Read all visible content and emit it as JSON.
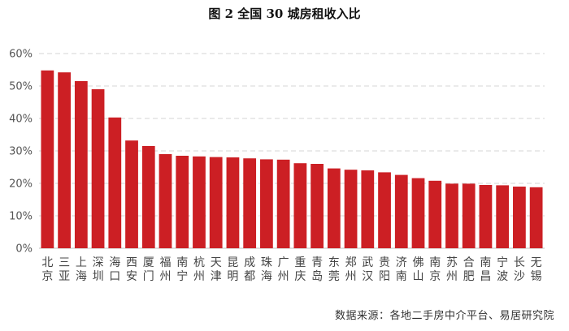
{
  "chart_data": {
    "type": "bar",
    "title": "图 2 全国 30 城房租收入比",
    "xlabel": "",
    "ylabel": "",
    "ylim": [
      0,
      60
    ],
    "y_ticks": [
      "0%",
      "10%",
      "20%",
      "30%",
      "40%",
      "50%",
      "60%"
    ],
    "y_tick_values": [
      0,
      10,
      20,
      30,
      40,
      50,
      60
    ],
    "grid": true,
    "bar_color": "#CC1F24",
    "grid_color": "#D4D4D4",
    "categories": [
      "北京",
      "三亚",
      "上海",
      "深圳",
      "海口",
      "西安",
      "厦门",
      "福州",
      "南宁",
      "杭州",
      "天津",
      "昆明",
      "成都",
      "珠海",
      "广州",
      "重庆",
      "青岛",
      "东莞",
      "郑州",
      "武汉",
      "贵阳",
      "济南",
      "佛山",
      "南京",
      "苏州",
      "合肥",
      "南昌",
      "宁波",
      "长沙",
      "无锡"
    ],
    "values": [
      54.8,
      54.2,
      51.5,
      49.0,
      40.3,
      33.2,
      31.5,
      29.0,
      28.5,
      28.3,
      28.1,
      28.0,
      27.7,
      27.4,
      27.3,
      26.2,
      26.0,
      24.6,
      24.2,
      24.0,
      23.4,
      22.6,
      21.6,
      20.8,
      19.9,
      19.9,
      19.5,
      19.4,
      19.0,
      18.8
    ],
    "source": "数据来源：各地二手房中介平台、易居研究院"
  }
}
